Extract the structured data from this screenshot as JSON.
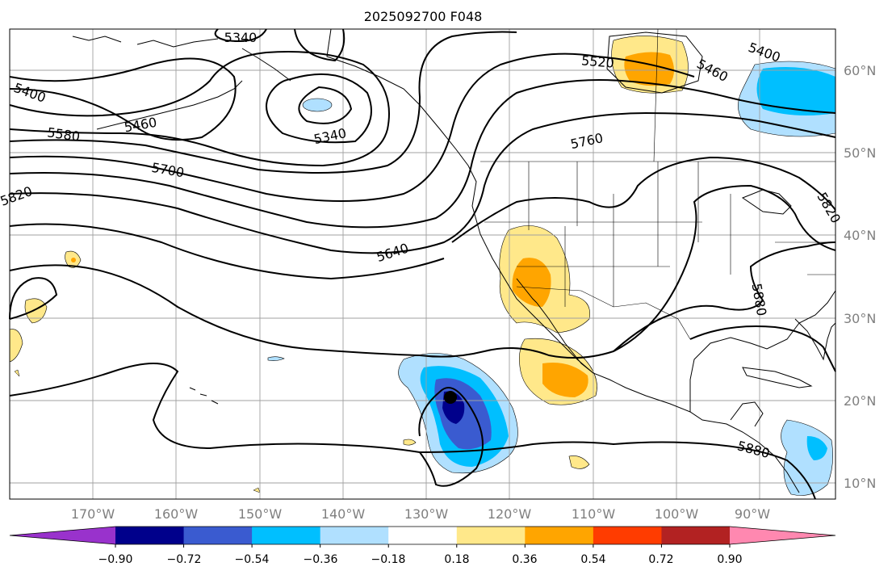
{
  "title": "2025092700 F048",
  "lon_labels": [
    "170°W",
    "160°W",
    "150°W",
    "140°W",
    "130°W",
    "120°W",
    "110°W",
    "100°W",
    "90°W"
  ],
  "lat_labels": [
    "60°N",
    "50°N",
    "40°N",
    "30°N",
    "20°N",
    "10°N"
  ],
  "colorbar": {
    "ticks": [
      "−0.90",
      "−0.72",
      "−0.54",
      "−0.36",
      "−0.18",
      "0.18",
      "0.36",
      "0.54",
      "0.72",
      "0.90"
    ],
    "colors": [
      "#9932cc",
      "#00008b",
      "#3a5bd0",
      "#00bfff",
      "#b0e0ff",
      "#ffffff",
      "#ffe88a",
      "#ffa500",
      "#ff3c00",
      "#b22222",
      "#ff88b0"
    ]
  },
  "contour_labels": [
    "5340",
    "5400",
    "5460",
    "5520",
    "5580",
    "5640",
    "5700",
    "5760",
    "5820",
    "5880",
    "5340",
    "5400",
    "5460",
    "5880",
    "5820"
  ],
  "shading_colors": {
    "light_blue": "#b0e0ff",
    "blue": "#00bfff",
    "mid_blue": "#3a5bd0",
    "navy": "#00008b",
    "yellow": "#ffe88a",
    "orange": "#ffa500"
  },
  "storm_marker_color": "#000000"
}
